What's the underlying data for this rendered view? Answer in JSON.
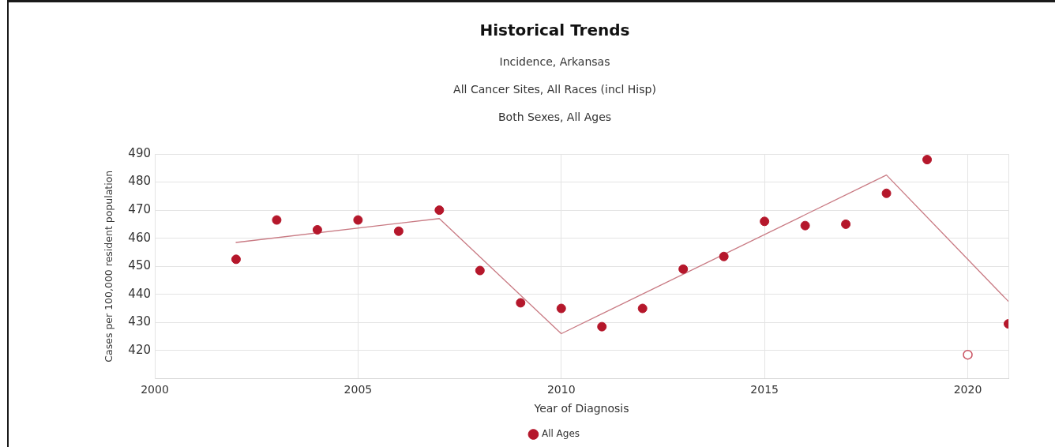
{
  "chart_data": {
    "type": "scatter",
    "title": "Historical Trends",
    "subtitle": "Incidence, Arkansas\nAll Cancer Sites, All Races (incl Hisp)\nBoth Sexes, All Ages",
    "xlabel": "Year of Diagnosis",
    "ylabel": "Cases per 100,000 resident population",
    "xlim": [
      2000,
      2021
    ],
    "xticks": [
      2000,
      2005,
      2010,
      2015,
      2020,
      {
        "value": 2021,
        "label": null
      }
    ],
    "ylim": [
      410,
      490
    ],
    "yticks": [
      420,
      430,
      440,
      450,
      460,
      470,
      480,
      490
    ],
    "grid": true,
    "legend": "bottom",
    "marker": "circle",
    "series": [
      {
        "name": "All Ages",
        "type": "scatter",
        "color": "#b5172b",
        "x": [
          2002,
          2003,
          2004,
          2005,
          2006,
          2007,
          2008,
          2009,
          2010,
          2011,
          2012,
          2013,
          2014,
          2015,
          2016,
          2017,
          2018,
          2019,
          2021
        ],
        "values": [
          452.5,
          466.5,
          463,
          466.5,
          462.5,
          470,
          448.5,
          437,
          435,
          428.5,
          435,
          449,
          453.5,
          466,
          464.5,
          465,
          476,
          488,
          429.5
        ]
      },
      {
        "type": "scatter",
        "color": "#c9505f",
        "x": [
          2020
        ],
        "values": [
          418.5
        ]
      },
      {
        "type": "line",
        "color": "#c97b84",
        "marker": "none",
        "line_style": "solid",
        "x": [
          2002,
          2007,
          2010,
          2018,
          2021
        ],
        "values": [
          458.5,
          467,
          426,
          482.5,
          437.5
        ]
      }
    ]
  }
}
